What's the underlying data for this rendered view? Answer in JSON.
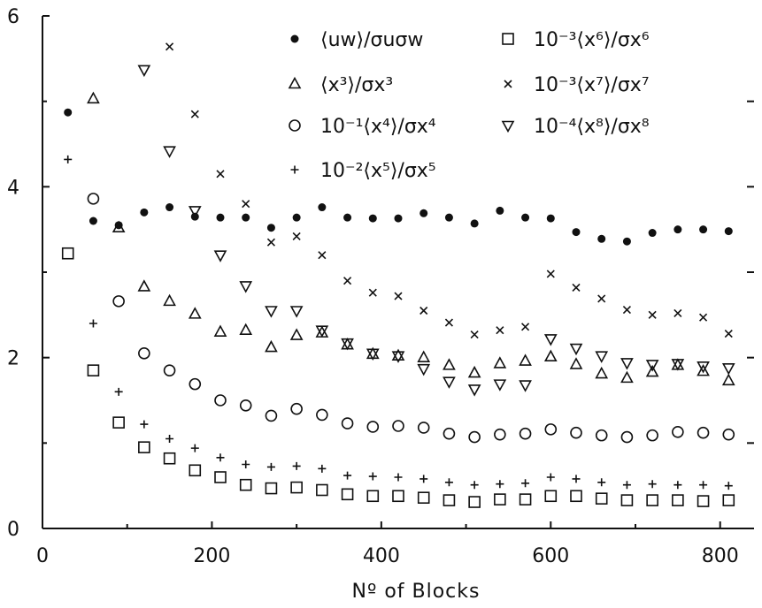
{
  "chart_data": {
    "type": "scatter",
    "xlabel": "Nº of Blocks",
    "ylabel": "",
    "xlim": [
      0,
      840
    ],
    "ylim": [
      0,
      6
    ],
    "xticks": [
      0,
      200,
      400,
      600,
      800
    ],
    "yticks": [
      0,
      2,
      4,
      6
    ],
    "grid": false,
    "legend_position": "top",
    "series": [
      {
        "name": "⟨uw⟩/σuσw",
        "marker": "filled-circle",
        "x": [
          30,
          60,
          90,
          120,
          150,
          180,
          210,
          240,
          270,
          300,
          330,
          360,
          390,
          420,
          450,
          480,
          510,
          540,
          570,
          600,
          630,
          660,
          690,
          720,
          750,
          780,
          810
        ],
        "y": [
          4.87,
          3.6,
          3.55,
          3.7,
          3.76,
          3.65,
          3.64,
          3.64,
          3.52,
          3.64,
          3.76,
          3.64,
          3.63,
          3.63,
          3.69,
          3.64,
          3.57,
          3.72,
          3.64,
          3.63,
          3.47,
          3.39,
          3.36,
          3.46,
          3.5,
          3.5,
          3.48
        ]
      },
      {
        "name": "⟨x³⟩/σx³",
        "marker": "triangle-up",
        "x": [
          60,
          90,
          120,
          150,
          180,
          210,
          240,
          270,
          300,
          330,
          360,
          390,
          420,
          450,
          480,
          510,
          540,
          570,
          600,
          630,
          660,
          690,
          720,
          750,
          780,
          810
        ],
        "y": [
          5.03,
          3.52,
          2.83,
          2.66,
          2.51,
          2.3,
          2.32,
          2.12,
          2.26,
          2.29,
          2.15,
          2.04,
          2.02,
          2.0,
          1.91,
          1.82,
          1.93,
          1.96,
          2.01,
          1.92,
          1.81,
          1.76,
          1.83,
          1.91,
          1.84,
          1.73
        ]
      },
      {
        "name": "10⁻¹⟨x⁴⟩/σx⁴",
        "marker": "open-circle",
        "x": [
          60,
          90,
          120,
          150,
          180,
          210,
          240,
          270,
          300,
          330,
          360,
          390,
          420,
          450,
          480,
          510,
          540,
          570,
          600,
          630,
          660,
          690,
          720,
          750,
          780,
          810
        ],
        "y": [
          3.86,
          2.66,
          2.05,
          1.85,
          1.69,
          1.5,
          1.44,
          1.32,
          1.4,
          1.33,
          1.23,
          1.19,
          1.2,
          1.18,
          1.11,
          1.07,
          1.1,
          1.11,
          1.16,
          1.12,
          1.09,
          1.07,
          1.09,
          1.13,
          1.12,
          1.1
        ]
      },
      {
        "name": "10⁻²⟨x⁵⟩/σx⁵",
        "marker": "plus",
        "x": [
          30,
          60,
          90,
          120,
          150,
          180,
          210,
          240,
          270,
          300,
          330,
          360,
          390,
          420,
          450,
          480,
          510,
          540,
          570,
          600,
          630,
          660,
          690,
          720,
          750,
          780,
          810
        ],
        "y": [
          4.32,
          2.4,
          1.6,
          1.22,
          1.05,
          0.94,
          0.83,
          0.75,
          0.72,
          0.73,
          0.7,
          0.62,
          0.61,
          0.6,
          0.58,
          0.54,
          0.51,
          0.52,
          0.53,
          0.6,
          0.58,
          0.54,
          0.51,
          0.52,
          0.51,
          0.51,
          0.5
        ]
      },
      {
        "name": "10⁻³⟨x⁶⟩/σx⁶",
        "marker": "square",
        "x": [
          30,
          60,
          90,
          120,
          150,
          180,
          210,
          240,
          270,
          300,
          330,
          360,
          390,
          420,
          450,
          480,
          510,
          540,
          570,
          600,
          630,
          660,
          690,
          720,
          750,
          780,
          810
        ],
        "y": [
          3.22,
          1.85,
          1.24,
          0.95,
          0.82,
          0.68,
          0.6,
          0.51,
          0.47,
          0.48,
          0.45,
          0.4,
          0.38,
          0.38,
          0.36,
          0.33,
          0.31,
          0.34,
          0.34,
          0.38,
          0.38,
          0.35,
          0.33,
          0.33,
          0.33,
          0.32,
          0.33
        ]
      },
      {
        "name": "10⁻³⟨x⁷⟩/σx⁷",
        "marker": "cross",
        "x": [
          150,
          180,
          210,
          240,
          270,
          300,
          330,
          360,
          390,
          420,
          450,
          480,
          510,
          540,
          570,
          600,
          630,
          660,
          690,
          720,
          750,
          780,
          810
        ],
        "y": [
          5.64,
          4.85,
          4.15,
          3.8,
          3.35,
          3.42,
          3.2,
          2.9,
          2.76,
          2.72,
          2.55,
          2.41,
          2.27,
          2.32,
          2.36,
          2.98,
          2.82,
          2.69,
          2.56,
          2.5,
          2.52,
          2.47,
          2.28
        ]
      },
      {
        "name": "10⁻⁴⟨x⁸⟩/σx⁸",
        "marker": "triangle-down",
        "x": [
          120,
          150,
          180,
          210,
          240,
          270,
          300,
          330,
          360,
          390,
          420,
          450,
          480,
          510,
          540,
          570,
          600,
          630,
          660,
          690,
          720,
          750,
          780,
          810
        ],
        "y": [
          5.37,
          4.42,
          3.72,
          3.2,
          2.84,
          2.55,
          2.55,
          2.32,
          2.17,
          2.05,
          2.02,
          1.87,
          1.72,
          1.63,
          1.69,
          1.68,
          2.22,
          2.11,
          2.02,
          1.94,
          1.92,
          1.93,
          1.9,
          1.88
        ]
      }
    ]
  }
}
